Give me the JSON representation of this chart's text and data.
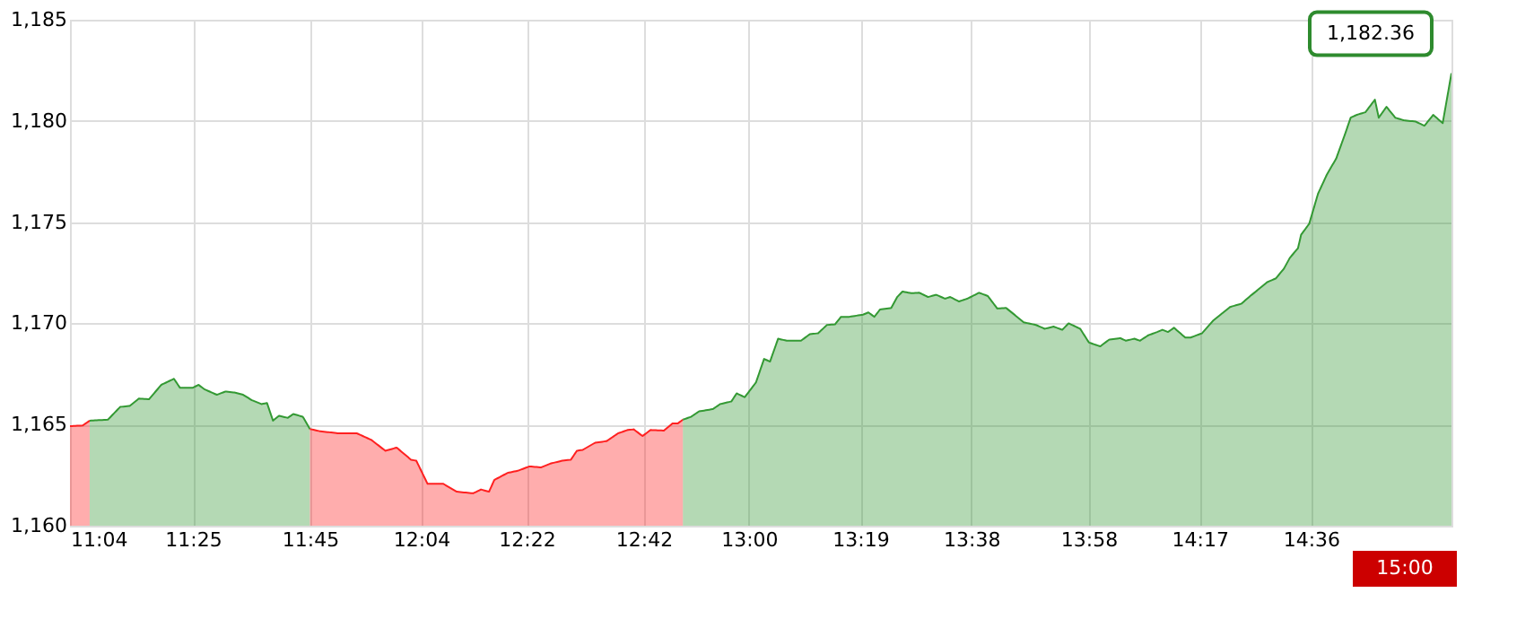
{
  "chart_data": {
    "type": "area",
    "xlim": [
      11.067,
      15.0
    ],
    "xticks": [
      {
        "value": 11.067,
        "label": "11:04"
      },
      {
        "value": 11.417,
        "label": "11:25"
      },
      {
        "value": 11.75,
        "label": "11:45"
      },
      {
        "value": 12.067,
        "label": "12:04"
      },
      {
        "value": 12.367,
        "label": "12:22"
      },
      {
        "value": 12.7,
        "label": "12:42"
      },
      {
        "value": 13.0,
        "label": "13:00"
      },
      {
        "value": 13.317,
        "label": "13:19"
      },
      {
        "value": 13.633,
        "label": "13:38"
      },
      {
        "value": 13.967,
        "label": "13:58"
      },
      {
        "value": 14.283,
        "label": "14:17"
      },
      {
        "value": 14.6,
        "label": "14:36"
      }
    ],
    "ylim": [
      1160,
      1185
    ],
    "yticks": [
      {
        "value": 1160,
        "label": "1,160"
      },
      {
        "value": 1165,
        "label": "1,165"
      },
      {
        "value": 1170,
        "label": "1,170"
      },
      {
        "value": 1175,
        "label": "1,175"
      },
      {
        "value": 1180,
        "label": "1,180"
      },
      {
        "value": 1185,
        "label": "1,185"
      }
    ],
    "grid": true,
    "marker": "none",
    "line_style": "solid",
    "annotations": [
      {
        "text": "1,182.36",
        "x": 15.0,
        "y": 1182.36
      },
      {
        "text": "15:00",
        "x": 15.0
      }
    ],
    "series": [
      {
        "color": "#ff2020",
        "x": [
          11.067,
          11.103,
          11.123
        ],
        "values": [
          1164.92,
          1164.95,
          1165.19
        ]
      },
      {
        "color": "#339933",
        "x": [
          11.123,
          11.175,
          11.21,
          11.237,
          11.263,
          11.292,
          11.327,
          11.363,
          11.38,
          11.417,
          11.433,
          11.45,
          11.485,
          11.51,
          11.535,
          11.56,
          11.585,
          11.612,
          11.628,
          11.645,
          11.662,
          11.687,
          11.703,
          11.73,
          11.75
        ],
        "values": [
          1165.19,
          1165.24,
          1165.87,
          1165.92,
          1166.28,
          1166.25,
          1166.96,
          1167.26,
          1166.82,
          1166.82,
          1166.96,
          1166.74,
          1166.47,
          1166.63,
          1166.58,
          1166.47,
          1166.2,
          1166.01,
          1166.06,
          1165.19,
          1165.43,
          1165.33,
          1165.52,
          1165.38,
          1164.78
        ]
      },
      {
        "color": "#ff2020",
        "x": [
          11.75,
          11.778,
          11.803,
          11.828,
          11.883,
          11.925,
          11.965,
          11.997,
          12.038,
          12.053,
          12.085,
          12.13,
          12.168,
          12.215,
          12.237,
          12.26,
          12.275,
          12.313,
          12.343,
          12.375,
          12.408,
          12.435,
          12.468,
          12.493,
          12.51,
          12.527,
          12.562,
          12.595,
          12.628,
          12.655,
          12.672,
          12.697,
          12.72,
          12.758,
          12.782,
          12.797,
          12.812
        ],
        "values": [
          1164.78,
          1164.67,
          1164.62,
          1164.57,
          1164.57,
          1164.24,
          1163.7,
          1163.86,
          1163.26,
          1163.21,
          1162.07,
          1162.07,
          1161.68,
          1161.6,
          1161.79,
          1161.68,
          1162.26,
          1162.61,
          1162.72,
          1162.93,
          1162.88,
          1163.07,
          1163.21,
          1163.26,
          1163.7,
          1163.75,
          1164.1,
          1164.18,
          1164.57,
          1164.73,
          1164.76,
          1164.43,
          1164.73,
          1164.7,
          1165.05,
          1165.05,
          1165.24
        ]
      },
      {
        "color": "#339933",
        "x": [
          12.812,
          12.835,
          12.858,
          12.897,
          12.918,
          12.95,
          12.965,
          12.988,
          13.02,
          13.043,
          13.06,
          13.083,
          13.108,
          13.148,
          13.173,
          13.197,
          13.222,
          13.245,
          13.262,
          13.285,
          13.325,
          13.34,
          13.357,
          13.373,
          13.405,
          13.422,
          13.437,
          13.462,
          13.485,
          13.51,
          13.533,
          13.558,
          13.573,
          13.598,
          13.622,
          13.655,
          13.68,
          13.707,
          13.732,
          13.757,
          13.782,
          13.817,
          13.842,
          13.867,
          13.892,
          13.91,
          13.943,
          13.968,
          14.0,
          14.025,
          14.057,
          14.073,
          14.097,
          14.113,
          14.137,
          14.162,
          14.177,
          14.193,
          14.21,
          14.242,
          14.258,
          14.29,
          14.322,
          14.347,
          14.37,
          14.402,
          14.427,
          14.443,
          14.475,
          14.5,
          14.523,
          14.54,
          14.563,
          14.572,
          14.578,
          14.595,
          14.62,
          14.645,
          14.672,
          14.697,
          14.713,
          14.73,
          14.755,
          14.782,
          14.793,
          14.815,
          14.84,
          14.865,
          14.898,
          14.923,
          14.948,
          14.975,
          15.0
        ],
        "values": [
          1165.24,
          1165.38,
          1165.65,
          1165.76,
          1166.01,
          1166.14,
          1166.54,
          1166.35,
          1167.08,
          1168.24,
          1168.11,
          1169.24,
          1169.14,
          1169.14,
          1169.46,
          1169.51,
          1169.92,
          1169.95,
          1170.32,
          1170.32,
          1170.43,
          1170.54,
          1170.32,
          1170.68,
          1170.76,
          1171.3,
          1171.57,
          1171.49,
          1171.51,
          1171.3,
          1171.41,
          1171.22,
          1171.3,
          1171.08,
          1171.22,
          1171.51,
          1171.35,
          1170.73,
          1170.76,
          1170.41,
          1170.05,
          1169.92,
          1169.73,
          1169.84,
          1169.68,
          1170.0,
          1169.73,
          1169.05,
          1168.86,
          1169.19,
          1169.27,
          1169.14,
          1169.24,
          1169.14,
          1169.41,
          1169.57,
          1169.68,
          1169.57,
          1169.78,
          1169.3,
          1169.3,
          1169.51,
          1170.14,
          1170.49,
          1170.81,
          1170.97,
          1171.35,
          1171.57,
          1172.03,
          1172.22,
          1172.7,
          1173.24,
          1173.71,
          1174.38,
          1174.52,
          1174.92,
          1176.4,
          1177.34,
          1178.15,
          1179.35,
          1180.16,
          1180.3,
          1180.43,
          1181.05,
          1180.16,
          1180.7,
          1180.16,
          1180.03,
          1179.97,
          1179.76,
          1180.3,
          1179.89,
          1182.36
        ]
      }
    ]
  }
}
